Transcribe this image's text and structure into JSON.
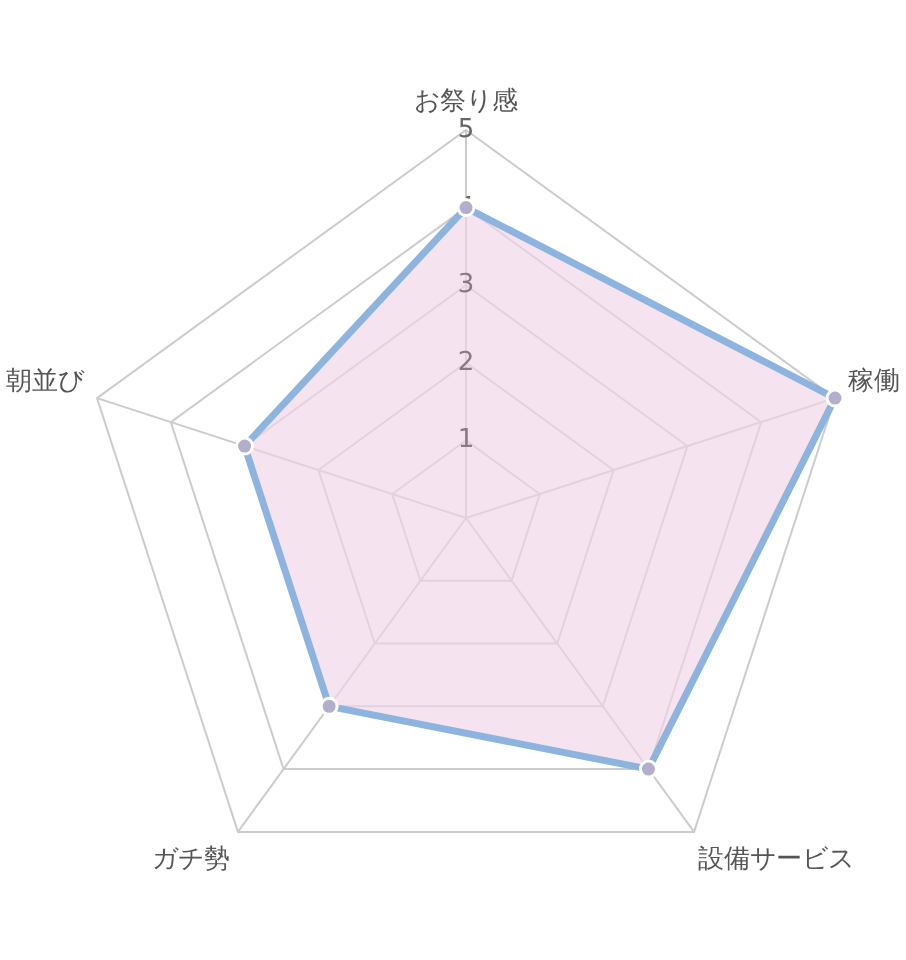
{
  "chart_data": {
    "type": "radar",
    "categories": [
      "お祭り感",
      "稼働",
      "設備サービス",
      "ガチ勢",
      "朝並び"
    ],
    "series": [
      {
        "color": "#8cb4de",
        "values": [
          4,
          5,
          4,
          3,
          3
        ]
      }
    ],
    "ylim": [
      0,
      5
    ],
    "yticks": [
      1,
      2,
      3,
      4,
      5
    ],
    "marker": "circle",
    "grid": true
  }
}
